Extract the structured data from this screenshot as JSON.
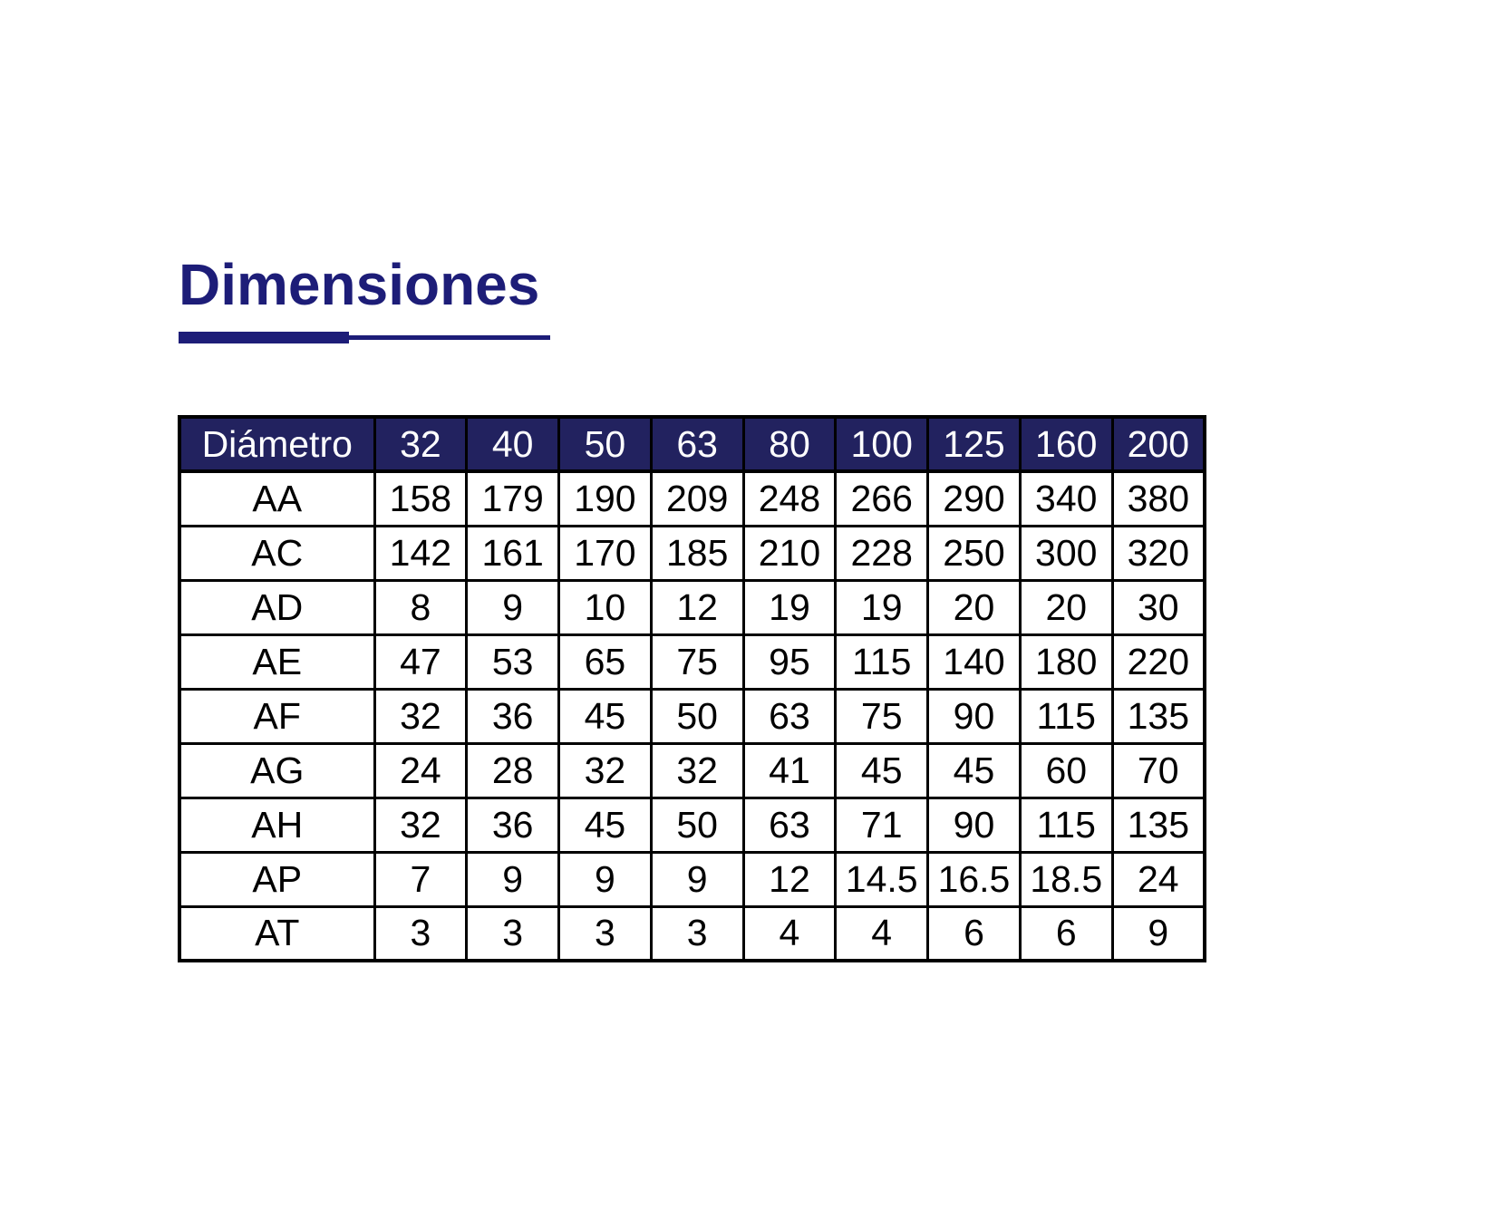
{
  "page": {
    "title": "Dimensiones",
    "colors": {
      "accent": "#1d1d78",
      "header_bg": "#22225f",
      "header_fg": "#ffffff",
      "grid": "#000000",
      "body_text": "#000000",
      "background": "#ffffff"
    }
  },
  "table": {
    "header": [
      "Diámetro",
      "32",
      "40",
      "50",
      "63",
      "80",
      "100",
      "125",
      "160",
      "200"
    ],
    "rows": [
      {
        "label": "AA",
        "values": [
          "158",
          "179",
          "190",
          "209",
          "248",
          "266",
          "290",
          "340",
          "380"
        ]
      },
      {
        "label": "AC",
        "values": [
          "142",
          "161",
          "170",
          "185",
          "210",
          "228",
          "250",
          "300",
          "320"
        ]
      },
      {
        "label": "AD",
        "values": [
          "8",
          "9",
          "10",
          "12",
          "19",
          "19",
          "20",
          "20",
          "30"
        ]
      },
      {
        "label": "AE",
        "values": [
          "47",
          "53",
          "65",
          "75",
          "95",
          "115",
          "140",
          "180",
          "220"
        ]
      },
      {
        "label": "AF",
        "values": [
          "32",
          "36",
          "45",
          "50",
          "63",
          "75",
          "90",
          "115",
          "135"
        ]
      },
      {
        "label": "AG",
        "values": [
          "24",
          "28",
          "32",
          "32",
          "41",
          "45",
          "45",
          "60",
          "70"
        ]
      },
      {
        "label": "AH",
        "values": [
          "32",
          "36",
          "45",
          "50",
          "63",
          "71",
          "90",
          "115",
          "135"
        ]
      },
      {
        "label": "AP",
        "values": [
          "7",
          "9",
          "9",
          "9",
          "12",
          "14.5",
          "16.5",
          "18.5",
          "24"
        ]
      },
      {
        "label": "AT",
        "values": [
          "3",
          "3",
          "3",
          "3",
          "4",
          "4",
          "6",
          "6",
          "9"
        ]
      }
    ]
  }
}
